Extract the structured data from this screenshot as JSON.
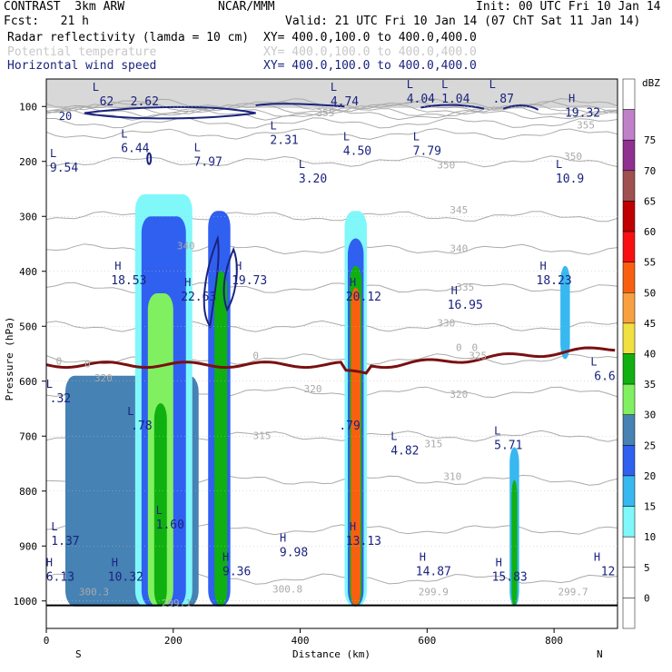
{
  "header": {
    "model": "CONTRAST  3km ARW",
    "org": "NCAR/MMM",
    "init": "Init: 00 UTC Fri 10 Jan 14",
    "fcst": "Fcst:   21 h",
    "valid": "Valid: 21 UTC Fri 10 Jan 14 (07 ChT Sat 11 Jan 14)",
    "fields": [
      {
        "name": "Radar reflectivity (lamda = 10 cm)",
        "xy": "XY= 400.0,100.0 to 400.0,400.0",
        "color": "#000000"
      },
      {
        "name": "Potential temperature",
        "xy": "XY= 400.0,100.0 to 400.0,400.0",
        "color": "#c8c8c8"
      },
      {
        "name": "Horizontal wind speed",
        "xy": "XY= 400.0,100.0 to 400.0,400.0",
        "color": "#1a237e"
      }
    ]
  },
  "chart_data": {
    "type": "heatmap",
    "xlabel": "Distance (km)",
    "ylabel": "Pressure (hPa)",
    "xlim": [
      0,
      900
    ],
    "ylim": [
      1050,
      50
    ],
    "x_ticks": [
      "0",
      "200",
      "400",
      "600",
      "800"
    ],
    "x_tick_values": [
      0,
      200,
      400,
      600,
      800
    ],
    "y_ticks": [
      "100",
      "200",
      "300",
      "400",
      "500",
      "600",
      "700",
      "800",
      "900",
      "1000"
    ],
    "y_tick_values": [
      100,
      200,
      300,
      400,
      500,
      600,
      700,
      800,
      900,
      1000
    ],
    "x_end_labels": {
      "left": "S",
      "right": "N"
    },
    "colorbar": {
      "unit": "dBZ",
      "levels": [
        {
          "label": "",
          "color": "#ffffff"
        },
        {
          "label": "0",
          "color": "#ffffff"
        },
        {
          "label": "5",
          "color": "#ffffff"
        },
        {
          "label": "10",
          "color": "#80f8fa"
        },
        {
          "label": "15",
          "color": "#38b8f0"
        },
        {
          "label": "20",
          "color": "#3060f0"
        },
        {
          "label": "25",
          "color": "#4682b4"
        },
        {
          "label": "30",
          "color": "#80f060"
        },
        {
          "label": "35",
          "color": "#10b010"
        },
        {
          "label": "40",
          "color": "#f0e040"
        },
        {
          "label": "45",
          "color": "#f8a040"
        },
        {
          "label": "50",
          "color": "#f86010"
        },
        {
          "label": "55",
          "color": "#f81010"
        },
        {
          "label": "60",
          "color": "#c00000"
        },
        {
          "label": "65",
          "color": "#a05050"
        },
        {
          "label": "70",
          "color": "#903090"
        },
        {
          "label": "75",
          "color": "#c080c8"
        },
        {
          "label": "",
          "color": "#ffffff"
        }
      ]
    },
    "reflectivity_cells": [
      {
        "x0": 30,
        "x1": 240,
        "ptop": 590,
        "pbot": 1010,
        "color": "#4682b4"
      },
      {
        "x0": 140,
        "x1": 230,
        "ptop": 260,
        "pbot": 1010,
        "color": "#80f8fa"
      },
      {
        "x0": 150,
        "x1": 220,
        "ptop": 300,
        "pbot": 1010,
        "color": "#3060f0"
      },
      {
        "x0": 160,
        "x1": 200,
        "ptop": 440,
        "pbot": 1010,
        "color": "#80f060"
      },
      {
        "x0": 170,
        "x1": 190,
        "ptop": 640,
        "pbot": 1010,
        "color": "#10b010"
      },
      {
        "x0": 255,
        "x1": 290,
        "ptop": 290,
        "pbot": 1010,
        "color": "#3060f0"
      },
      {
        "x0": 265,
        "x1": 285,
        "ptop": 400,
        "pbot": 1010,
        "color": "#10b010"
      },
      {
        "x0": 470,
        "x1": 505,
        "ptop": 290,
        "pbot": 1010,
        "color": "#80f8fa"
      },
      {
        "x0": 475,
        "x1": 500,
        "ptop": 340,
        "pbot": 1010,
        "color": "#3060f0"
      },
      {
        "x0": 478,
        "x1": 497,
        "ptop": 390,
        "pbot": 1010,
        "color": "#10b010"
      },
      {
        "x0": 480,
        "x1": 495,
        "ptop": 430,
        "pbot": 1010,
        "color": "#f86010"
      },
      {
        "x0": 730,
        "x1": 745,
        "ptop": 720,
        "pbot": 1010,
        "color": "#38b8f0"
      },
      {
        "x0": 733,
        "x1": 742,
        "ptop": 780,
        "pbot": 1010,
        "color": "#10b010"
      },
      {
        "x0": 810,
        "x1": 825,
        "ptop": 390,
        "pbot": 560,
        "color": "#38b8f0"
      }
    ],
    "zero_line_pressure": 570,
    "wind_labels": [
      {
        "type": "L",
        "value": "62",
        "x": 95,
        "p": 85
      },
      {
        "type": "",
        "value": "2.62",
        "x": 155,
        "p": 85
      },
      {
        "type": "L",
        "value": "4.74",
        "x": 470,
        "p": 85
      },
      {
        "type": "L",
        "value": "4.04",
        "x": 590,
        "p": 80
      },
      {
        "type": "L",
        "value": "1.04",
        "x": 645,
        "p": 80
      },
      {
        "type": "L",
        "value": ".87",
        "x": 720,
        "p": 80
      },
      {
        "type": "H",
        "value": "19.32",
        "x": 845,
        "p": 105
      },
      {
        "type": "L",
        "value": "6.44",
        "x": 140,
        "p": 170
      },
      {
        "type": "L",
        "value": "2.31",
        "x": 375,
        "p": 155
      },
      {
        "type": "L",
        "value": "7.97",
        "x": 255,
        "p": 195
      },
      {
        "type": "L",
        "value": "4.50",
        "x": 490,
        "p": 175
      },
      {
        "type": "L",
        "value": "7.79",
        "x": 600,
        "p": 175
      },
      {
        "type": "L",
        "value": "9.54",
        "x": 28,
        "p": 205
      },
      {
        "type": "L",
        "value": "3.20",
        "x": 420,
        "p": 225
      },
      {
        "type": "L",
        "value": "10.9",
        "x": 825,
        "p": 225
      },
      {
        "type": "H",
        "value": "18.53",
        "x": 130,
        "p": 410
      },
      {
        "type": "H",
        "value": "22.63",
        "x": 240,
        "p": 440
      },
      {
        "type": "H",
        "value": "19.73",
        "x": 320,
        "p": 410
      },
      {
        "type": "H",
        "value": "20.12",
        "x": 500,
        "p": 440
      },
      {
        "type": "H",
        "value": "16.95",
        "x": 660,
        "p": 455
      },
      {
        "type": "H",
        "value": "18.23",
        "x": 800,
        "p": 410
      },
      {
        "type": "L",
        "value": "6.6",
        "x": 880,
        "p": 585
      },
      {
        "type": "L",
        "value": ".32",
        "x": 22,
        "p": 625
      },
      {
        "type": "L",
        "value": ".78",
        "x": 150,
        "p": 675
      },
      {
        "type": "",
        "value": ".79",
        "x": 478,
        "p": 675
      },
      {
        "type": "L",
        "value": "4.82",
        "x": 565,
        "p": 720
      },
      {
        "type": "L",
        "value": "5.71",
        "x": 728,
        "p": 710
      },
      {
        "type": "L",
        "value": "1.60",
        "x": 195,
        "p": 855
      },
      {
        "type": "L",
        "value": "1.37",
        "x": 30,
        "p": 885
      },
      {
        "type": "H",
        "value": "13.13",
        "x": 500,
        "p": 885
      },
      {
        "type": "H",
        "value": "9.98",
        "x": 390,
        "p": 905
      },
      {
        "type": "H",
        "value": "6.13",
        "x": 22,
        "p": 950
      },
      {
        "type": "H",
        "value": "10.32",
        "x": 125,
        "p": 950
      },
      {
        "type": "H",
        "value": "9.36",
        "x": 300,
        "p": 940
      },
      {
        "type": "H",
        "value": "14.87",
        "x": 610,
        "p": 940
      },
      {
        "type": "H",
        "value": "15.83",
        "x": 730,
        "p": 950
      },
      {
        "type": "H",
        "value": "12",
        "x": 885,
        "p": 940
      }
    ],
    "theta_labels": [
      {
        "value": "355",
        "x": 440,
        "p": 118
      },
      {
        "value": "355",
        "x": 850,
        "p": 140
      },
      {
        "value": "350",
        "x": 630,
        "p": 213
      },
      {
        "value": "350",
        "x": 830,
        "p": 197
      },
      {
        "value": "345",
        "x": 650,
        "p": 295
      },
      {
        "value": "340",
        "x": 220,
        "p": 360
      },
      {
        "value": "340",
        "x": 650,
        "p": 365
      },
      {
        "value": "335",
        "x": 660,
        "p": 435
      },
      {
        "value": "330",
        "x": 630,
        "p": 500
      },
      {
        "value": "325",
        "x": 680,
        "p": 560
      },
      {
        "value": "320",
        "x": 90,
        "p": 600
      },
      {
        "value": "320",
        "x": 420,
        "p": 620
      },
      {
        "value": "320",
        "x": 650,
        "p": 630
      },
      {
        "value": "315",
        "x": 340,
        "p": 705
      },
      {
        "value": "315",
        "x": 610,
        "p": 720
      },
      {
        "value": "310",
        "x": 640,
        "p": 780
      },
      {
        "value": "300.3",
        "x": 75,
        "p": 990
      },
      {
        "value": "299.1",
        "x": 205,
        "p": 1010
      },
      {
        "value": "300.8",
        "x": 380,
        "p": 985
      },
      {
        "value": "299.9",
        "x": 610,
        "p": 990
      },
      {
        "value": "299.7",
        "x": 830,
        "p": 990
      }
    ],
    "zero_labels": [
      {
        "value": "0",
        "x": 20,
        "p": 570
      },
      {
        "value": "0",
        "x": 65,
        "p": 575
      },
      {
        "value": "0",
        "x": 330,
        "p": 560
      },
      {
        "value": "0",
        "x": 650,
        "p": 545
      },
      {
        "value": "0",
        "x": 675,
        "p": 545
      }
    ],
    "wind_contour_label": {
      "value": "20",
      "x": 30,
      "p": 118
    }
  },
  "colors": {
    "theta": "#aaaaaa",
    "wind": "#1a237e",
    "zero_line": "#7a1010"
  }
}
